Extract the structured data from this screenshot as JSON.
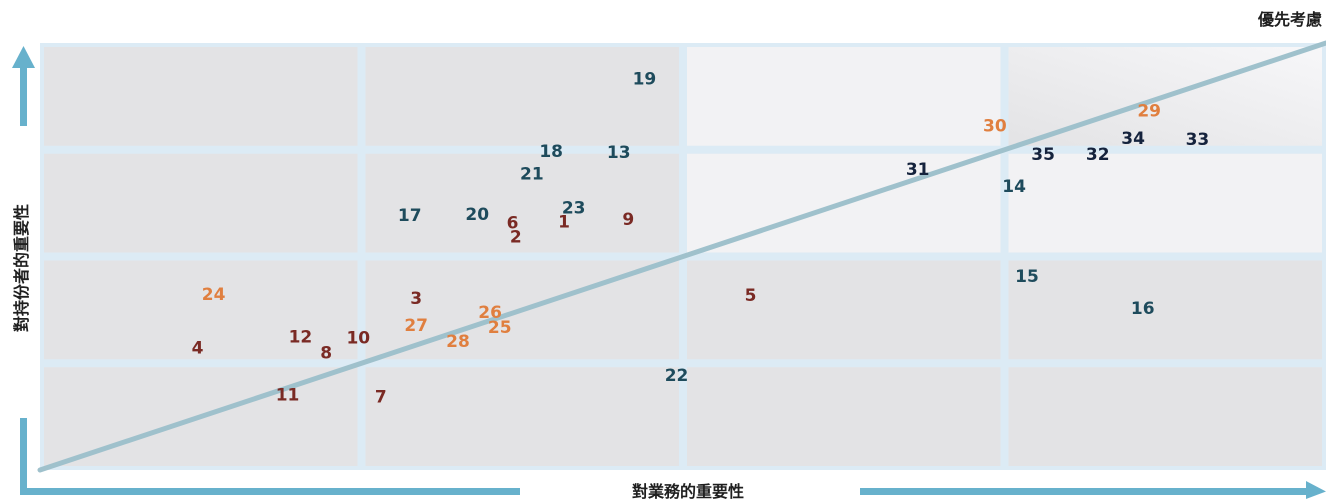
{
  "chart_data": {
    "type": "scatter",
    "title": "",
    "xlabel": "對業務的重要性",
    "ylabel": "對持份者的重要性",
    "corner_label": "優先考慮",
    "xlim": [
      0,
      4
    ],
    "ylim": [
      0,
      4
    ],
    "grid": "2x4 quadrant cells (4 columns x 4 rows)",
    "colors": {
      "dark_red": "#7a2a24",
      "orange": "#e07f3f",
      "dark_teal": "#1e4b5c",
      "navy": "#15233d",
      "cell_fill": "#e3e3e5",
      "cell_fill_light": "#f2f2f4",
      "cell_border": "#dcebf5",
      "axis_arrow": "#67b1cc",
      "trend_line": "#9fc1cc"
    },
    "trend_line": {
      "from": [
        0,
        0
      ],
      "to": [
        4,
        4
      ]
    },
    "points": [
      {
        "label": "1",
        "x": 1.63,
        "y": 2.32,
        "color": "dark_red"
      },
      {
        "label": "2",
        "x": 1.48,
        "y": 2.18,
        "color": "dark_red"
      },
      {
        "label": "3",
        "x": 1.17,
        "y": 1.6,
        "color": "dark_red"
      },
      {
        "label": "4",
        "x": 0.49,
        "y": 1.14,
        "color": "dark_red"
      },
      {
        "label": "5",
        "x": 2.21,
        "y": 1.63,
        "color": "dark_red"
      },
      {
        "label": "6",
        "x": 1.47,
        "y": 2.31,
        "color": "dark_red"
      },
      {
        "label": "7",
        "x": 1.06,
        "y": 0.68,
        "color": "dark_red"
      },
      {
        "label": "8",
        "x": 0.89,
        "y": 1.09,
        "color": "dark_red"
      },
      {
        "label": "9",
        "x": 1.83,
        "y": 2.34,
        "color": "dark_red"
      },
      {
        "label": "10",
        "x": 0.99,
        "y": 1.23,
        "color": "dark_red"
      },
      {
        "label": "11",
        "x": 0.77,
        "y": 0.7,
        "color": "dark_red"
      },
      {
        "label": "12",
        "x": 0.81,
        "y": 1.24,
        "color": "dark_red"
      },
      {
        "label": "13",
        "x": 1.8,
        "y": 2.97,
        "color": "dark_teal"
      },
      {
        "label": "14",
        "x": 3.03,
        "y": 2.65,
        "color": "dark_teal"
      },
      {
        "label": "15",
        "x": 3.07,
        "y": 1.81,
        "color": "dark_teal"
      },
      {
        "label": "16",
        "x": 3.43,
        "y": 1.51,
        "color": "dark_teal"
      },
      {
        "label": "17",
        "x": 1.15,
        "y": 2.38,
        "color": "dark_teal"
      },
      {
        "label": "18",
        "x": 1.59,
        "y": 2.98,
        "color": "dark_teal"
      },
      {
        "label": "19",
        "x": 1.88,
        "y": 3.66,
        "color": "dark_teal"
      },
      {
        "label": "20",
        "x": 1.36,
        "y": 2.39,
        "color": "dark_teal"
      },
      {
        "label": "21",
        "x": 1.53,
        "y": 2.77,
        "color": "dark_teal"
      },
      {
        "label": "22",
        "x": 1.98,
        "y": 0.88,
        "color": "dark_teal"
      },
      {
        "label": "23",
        "x": 1.66,
        "y": 2.45,
        "color": "dark_teal"
      },
      {
        "label": "24",
        "x": 0.54,
        "y": 1.64,
        "color": "orange"
      },
      {
        "label": "25",
        "x": 1.43,
        "y": 1.33,
        "color": "orange"
      },
      {
        "label": "26",
        "x": 1.4,
        "y": 1.47,
        "color": "orange"
      },
      {
        "label": "27",
        "x": 1.17,
        "y": 1.35,
        "color": "orange"
      },
      {
        "label": "28",
        "x": 1.3,
        "y": 1.2,
        "color": "orange"
      },
      {
        "label": "29",
        "x": 3.45,
        "y": 3.36,
        "color": "orange"
      },
      {
        "label": "30",
        "x": 2.97,
        "y": 3.22,
        "color": "orange"
      },
      {
        "label": "31",
        "x": 2.73,
        "y": 2.81,
        "color": "navy"
      },
      {
        "label": "32",
        "x": 3.29,
        "y": 2.95,
        "color": "navy"
      },
      {
        "label": "33",
        "x": 3.6,
        "y": 3.09,
        "color": "navy"
      },
      {
        "label": "34",
        "x": 3.4,
        "y": 3.1,
        "color": "navy"
      },
      {
        "label": "35",
        "x": 3.12,
        "y": 2.95,
        "color": "navy"
      }
    ]
  }
}
